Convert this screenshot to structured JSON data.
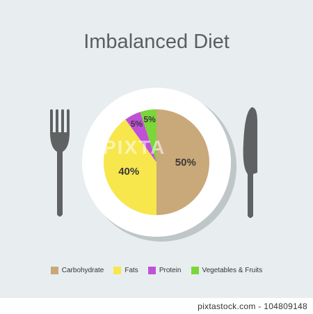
{
  "title": "Imbalanced Diet",
  "chart_data": {
    "type": "pie",
    "title": "Imbalanced Diet",
    "slices": [
      {
        "name": "Carbohydrate",
        "value": 50,
        "label": "50%",
        "color": "#c9a87a"
      },
      {
        "name": "Fats",
        "value": 40,
        "label": "40%",
        "color": "#f7e64c"
      },
      {
        "name": "Protein",
        "value": 5,
        "label": "5%",
        "color": "#c150d8"
      },
      {
        "name": "Vegetables & Fruits",
        "value": 5,
        "label": "5%",
        "color": "#7ad63a"
      }
    ],
    "legend": "bottom"
  },
  "icons": [
    "fork-icon",
    "knife-icon",
    "plate-icon"
  ],
  "watermark": "PIXTA",
  "credit": "pixtastock.com - 104809148"
}
